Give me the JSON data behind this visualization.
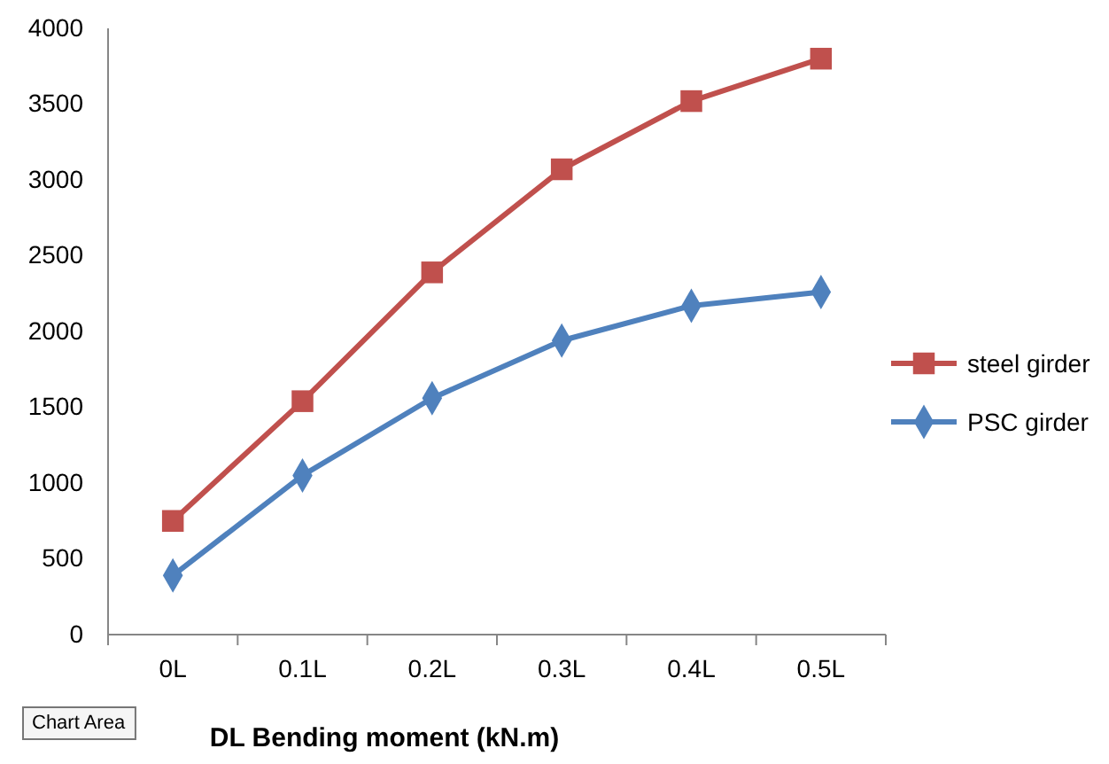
{
  "chart_data": {
    "type": "line",
    "xlabel": "DL Bending moment (kN.m)",
    "categories": [
      "0L",
      "0.1L",
      "0.2L",
      "0.3L",
      "0.4L",
      "0.5L"
    ],
    "series": [
      {
        "name": "steel girder",
        "color": "#c0504d",
        "marker": "square",
        "values": [
          750,
          1540,
          2390,
          3070,
          3520,
          3800
        ]
      },
      {
        "name": "PSC girder",
        "color": "#4f81bd",
        "marker": "diamond",
        "values": [
          390,
          1050,
          1560,
          1940,
          2170,
          2260
        ]
      }
    ],
    "ylim": [
      0,
      4000
    ],
    "yticks": [
      0,
      500,
      1000,
      1500,
      2000,
      2500,
      3000,
      3500,
      4000
    ],
    "grid": false,
    "legend": "right",
    "annotations": [
      "Chart Area"
    ]
  }
}
